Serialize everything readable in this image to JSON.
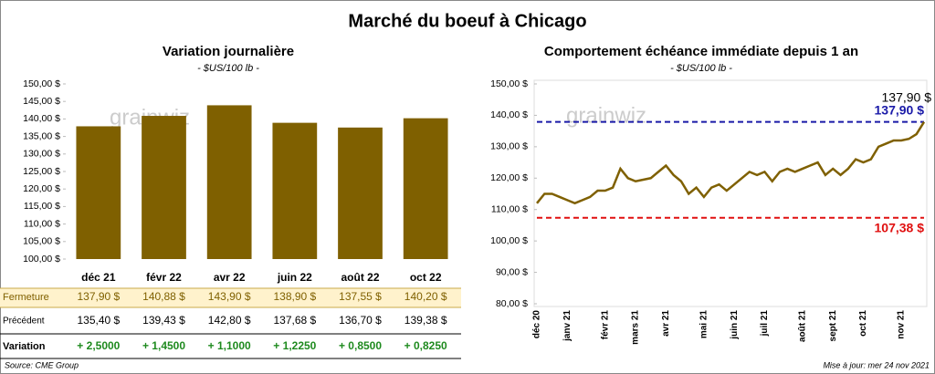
{
  "title": "Marché du boeuf à Chicago",
  "watermark": "grainwiz",
  "source": "Source: CME Group",
  "updated": "Mise à jour: mer 24 nov 2021",
  "table": {
    "rows": [
      {
        "label": "Fermeture",
        "cells": [
          "137,90 $",
          "140,88 $",
          "143,90 $",
          "138,90 $",
          "137,55 $",
          "140,20 $"
        ]
      },
      {
        "label": "Précédent",
        "cells": [
          "135,40 $",
          "139,43 $",
          "142,80 $",
          "137,68 $",
          "136,70 $",
          "139,38 $"
        ]
      },
      {
        "label": "Variation",
        "cells": [
          "+ 2,5000",
          "+ 1,4500",
          "+ 1,1000",
          "+ 1,2250",
          "+ 0,8500",
          "+ 0,8250"
        ]
      }
    ]
  },
  "chart_data": [
    {
      "type": "bar",
      "title": "Variation  journalière",
      "subtitle": "- $US/100 lb -",
      "color": "#7f6000",
      "categories": [
        "déc 21",
        "févr 22",
        "avr 22",
        "juin 22",
        "août 22",
        "oct 22"
      ],
      "values": [
        137.9,
        140.88,
        143.9,
        138.9,
        137.55,
        140.2
      ],
      "ylim": [
        100,
        150
      ],
      "yticks": [
        {
          "value": 100,
          "label": "100,00 $"
        },
        {
          "value": 105,
          "label": "105,00 $"
        },
        {
          "value": 110,
          "label": "110,00 $"
        },
        {
          "value": 115,
          "label": "115,00 $"
        },
        {
          "value": 120,
          "label": "120,00 $"
        },
        {
          "value": 125,
          "label": "125,00 $"
        },
        {
          "value": 130,
          "label": "130,00 $"
        },
        {
          "value": 135,
          "label": "135,00 $"
        },
        {
          "value": 140,
          "label": "140,00 $"
        },
        {
          "value": 145,
          "label": "145,00 $"
        },
        {
          "value": 150,
          "label": "150,00 $"
        }
      ]
    },
    {
      "type": "line",
      "title": "Comportement  échéance immédiate depuis 1 an",
      "subtitle": "- $US/100 lb -",
      "color": "#7f6000",
      "categories": [
        "déc 20",
        null,
        null,
        null,
        "janv 21",
        null,
        null,
        null,
        null,
        "févr 21",
        null,
        null,
        null,
        "mars 21",
        null,
        null,
        null,
        "avr 21",
        null,
        null,
        null,
        null,
        "mai 21",
        null,
        null,
        null,
        "juin 21",
        null,
        null,
        null,
        "juil 21",
        null,
        null,
        null,
        null,
        "août 21",
        null,
        null,
        null,
        "sept 21",
        null,
        null,
        null,
        "oct 21",
        null,
        null,
        null,
        null,
        "nov 21",
        null,
        null,
        null
      ],
      "values": [
        112,
        115,
        115,
        114,
        113,
        112,
        113,
        114,
        116,
        116,
        117,
        123,
        120,
        119,
        119.5,
        120,
        122,
        124,
        121,
        119,
        115,
        117,
        114,
        117,
        118,
        116,
        118,
        120,
        122,
        121,
        122,
        119,
        122,
        123,
        122,
        123,
        124,
        125,
        121,
        123,
        121,
        123,
        126,
        125,
        126,
        130,
        131,
        132,
        132,
        132.5,
        134,
        137.9
      ],
      "end_label": "137,90 $",
      "hlines": [
        {
          "value": 137.9,
          "label": "137,90 $",
          "color": "#1a1aa8"
        },
        {
          "value": 107.38,
          "label": "107,38 $",
          "color": "#e01010"
        }
      ],
      "ylim": [
        80,
        150
      ],
      "yticks": [
        {
          "value": 80,
          "label": "80,00 $"
        },
        {
          "value": 90,
          "label": "90,00 $"
        },
        {
          "value": 100,
          "label": "100,00 $"
        },
        {
          "value": 110,
          "label": "110,00 $"
        },
        {
          "value": 120,
          "label": "120,00 $"
        },
        {
          "value": 130,
          "label": "130,00 $"
        },
        {
          "value": 140,
          "label": "140,00 $"
        },
        {
          "value": 150,
          "label": "150,00 $"
        }
      ]
    }
  ]
}
